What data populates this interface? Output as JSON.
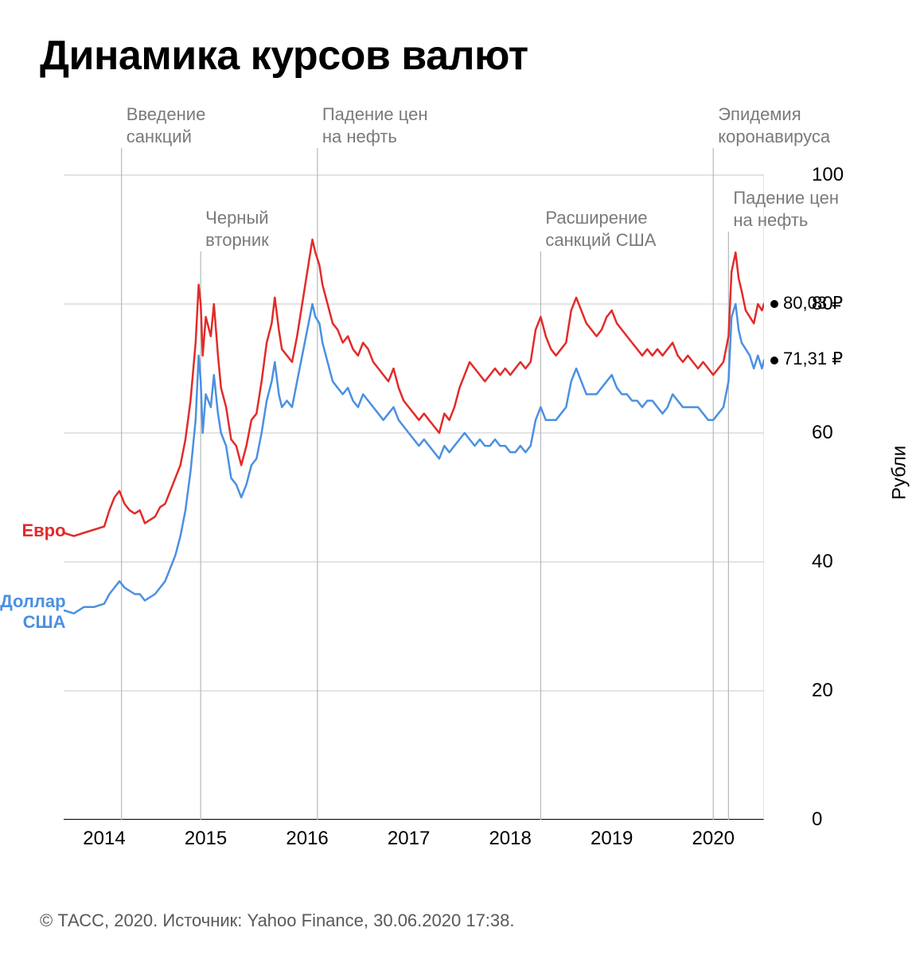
{
  "title": "Динамика курсов валют",
  "footer": "© ТАСС, 2020. Источник: Yahoo Finance, 30.06.2020 17:38.",
  "chart": {
    "type": "line",
    "background_color": "#ffffff",
    "grid_color": "#c9c9c9",
    "axis_color": "#000000",
    "event_line_color": "#b8b8b8",
    "x_domain": [
      2013.6,
      2020.5
    ],
    "y_domain": [
      0,
      100
    ],
    "y_title": "Рубли",
    "y_ticks": [
      0,
      20,
      40,
      60,
      80,
      100
    ],
    "x_ticks": [
      2014,
      2015,
      2016,
      2017,
      2018,
      2019,
      2020
    ],
    "x_tick_labels": [
      "2014",
      "2015",
      "2016",
      "2017",
      "2018",
      "2019",
      "2020"
    ],
    "title_fontsize": 52,
    "tick_fontsize": 24,
    "line_width": 2.5,
    "events": [
      {
        "x": 2014.17,
        "y_row": 0,
        "label": "Введение\nсанкций"
      },
      {
        "x": 2014.95,
        "y_row": 1,
        "label": "Черный\nвторник"
      },
      {
        "x": 2016.1,
        "y_row": 0,
        "label": "Падение цен\nна нефть"
      },
      {
        "x": 2018.3,
        "y_row": 1,
        "label": "Расширение\nсанкций США"
      },
      {
        "x": 2020.0,
        "y_row": 0,
        "label": "Эпидемия\nкоронавируса"
      },
      {
        "x": 2020.15,
        "y_row": 2,
        "label": "Падение цен\nна нефть"
      }
    ],
    "series": [
      {
        "name": "Евро",
        "color": "#e22b29",
        "label_pos_x": 2013.62,
        "label_pos_y": 45,
        "end_value": 80.03,
        "end_label": "80,03 ₽",
        "data": [
          [
            2013.6,
            44.5
          ],
          [
            2013.7,
            44.0
          ],
          [
            2013.8,
            44.5
          ],
          [
            2013.9,
            45.0
          ],
          [
            2014.0,
            45.5
          ],
          [
            2014.05,
            48.0
          ],
          [
            2014.1,
            50.0
          ],
          [
            2014.15,
            51.0
          ],
          [
            2014.2,
            49.0
          ],
          [
            2014.25,
            48.0
          ],
          [
            2014.3,
            47.5
          ],
          [
            2014.35,
            48.0
          ],
          [
            2014.4,
            46.0
          ],
          [
            2014.45,
            46.5
          ],
          [
            2014.5,
            47.0
          ],
          [
            2014.55,
            48.5
          ],
          [
            2014.6,
            49.0
          ],
          [
            2014.65,
            51.0
          ],
          [
            2014.7,
            53.0
          ],
          [
            2014.75,
            55.0
          ],
          [
            2014.8,
            59.0
          ],
          [
            2014.85,
            65.0
          ],
          [
            2014.9,
            74.0
          ],
          [
            2014.93,
            83.0
          ],
          [
            2014.95,
            80.0
          ],
          [
            2014.97,
            72.0
          ],
          [
            2015.0,
            78.0
          ],
          [
            2015.05,
            75.0
          ],
          [
            2015.08,
            80.0
          ],
          [
            2015.12,
            72.0
          ],
          [
            2015.15,
            67.0
          ],
          [
            2015.2,
            64.0
          ],
          [
            2015.25,
            59.0
          ],
          [
            2015.3,
            58.0
          ],
          [
            2015.35,
            55.0
          ],
          [
            2015.4,
            58.0
          ],
          [
            2015.45,
            62.0
          ],
          [
            2015.5,
            63.0
          ],
          [
            2015.55,
            68.0
          ],
          [
            2015.6,
            74.0
          ],
          [
            2015.65,
            77.0
          ],
          [
            2015.68,
            81.0
          ],
          [
            2015.72,
            76.0
          ],
          [
            2015.75,
            73.0
          ],
          [
            2015.8,
            72.0
          ],
          [
            2015.85,
            71.0
          ],
          [
            2015.9,
            75.0
          ],
          [
            2015.95,
            80.0
          ],
          [
            2016.0,
            85.0
          ],
          [
            2016.05,
            90.0
          ],
          [
            2016.08,
            88.0
          ],
          [
            2016.12,
            86.0
          ],
          [
            2016.15,
            83.0
          ],
          [
            2016.2,
            80.0
          ],
          [
            2016.25,
            77.0
          ],
          [
            2016.3,
            76.0
          ],
          [
            2016.35,
            74.0
          ],
          [
            2016.4,
            75.0
          ],
          [
            2016.45,
            73.0
          ],
          [
            2016.5,
            72.0
          ],
          [
            2016.55,
            74.0
          ],
          [
            2016.6,
            73.0
          ],
          [
            2016.65,
            71.0
          ],
          [
            2016.7,
            70.0
          ],
          [
            2016.75,
            69.0
          ],
          [
            2016.8,
            68.0
          ],
          [
            2016.85,
            70.0
          ],
          [
            2016.9,
            67.0
          ],
          [
            2016.95,
            65.0
          ],
          [
            2017.0,
            64.0
          ],
          [
            2017.05,
            63.0
          ],
          [
            2017.1,
            62.0
          ],
          [
            2017.15,
            63.0
          ],
          [
            2017.2,
            62.0
          ],
          [
            2017.25,
            61.0
          ],
          [
            2017.3,
            60.0
          ],
          [
            2017.35,
            63.0
          ],
          [
            2017.4,
            62.0
          ],
          [
            2017.45,
            64.0
          ],
          [
            2017.5,
            67.0
          ],
          [
            2017.55,
            69.0
          ],
          [
            2017.6,
            71.0
          ],
          [
            2017.65,
            70.0
          ],
          [
            2017.7,
            69.0
          ],
          [
            2017.75,
            68.0
          ],
          [
            2017.8,
            69.0
          ],
          [
            2017.85,
            70.0
          ],
          [
            2017.9,
            69.0
          ],
          [
            2017.95,
            70.0
          ],
          [
            2018.0,
            69.0
          ],
          [
            2018.05,
            70.0
          ],
          [
            2018.1,
            71.0
          ],
          [
            2018.15,
            70.0
          ],
          [
            2018.2,
            71.0
          ],
          [
            2018.25,
            76.0
          ],
          [
            2018.3,
            78.0
          ],
          [
            2018.35,
            75.0
          ],
          [
            2018.4,
            73.0
          ],
          [
            2018.45,
            72.0
          ],
          [
            2018.5,
            73.0
          ],
          [
            2018.55,
            74.0
          ],
          [
            2018.6,
            79.0
          ],
          [
            2018.65,
            81.0
          ],
          [
            2018.7,
            79.0
          ],
          [
            2018.75,
            77.0
          ],
          [
            2018.8,
            76.0
          ],
          [
            2018.85,
            75.0
          ],
          [
            2018.9,
            76.0
          ],
          [
            2018.95,
            78.0
          ],
          [
            2019.0,
            79.0
          ],
          [
            2019.05,
            77.0
          ],
          [
            2019.1,
            76.0
          ],
          [
            2019.15,
            75.0
          ],
          [
            2019.2,
            74.0
          ],
          [
            2019.25,
            73.0
          ],
          [
            2019.3,
            72.0
          ],
          [
            2019.35,
            73.0
          ],
          [
            2019.4,
            72.0
          ],
          [
            2019.45,
            73.0
          ],
          [
            2019.5,
            72.0
          ],
          [
            2019.55,
            73.0
          ],
          [
            2019.6,
            74.0
          ],
          [
            2019.65,
            72.0
          ],
          [
            2019.7,
            71.0
          ],
          [
            2019.75,
            72.0
          ],
          [
            2019.8,
            71.0
          ],
          [
            2019.85,
            70.0
          ],
          [
            2019.9,
            71.0
          ],
          [
            2019.95,
            70.0
          ],
          [
            2020.0,
            69.0
          ],
          [
            2020.05,
            70.0
          ],
          [
            2020.1,
            71.0
          ],
          [
            2020.15,
            75.0
          ],
          [
            2020.18,
            85.0
          ],
          [
            2020.22,
            88.0
          ],
          [
            2020.25,
            84.0
          ],
          [
            2020.28,
            82.0
          ],
          [
            2020.32,
            79.0
          ],
          [
            2020.36,
            78.0
          ],
          [
            2020.4,
            77.0
          ],
          [
            2020.44,
            80.0
          ],
          [
            2020.48,
            79.0
          ],
          [
            2020.5,
            80.03
          ]
        ]
      },
      {
        "name": "Доллар\nСША",
        "color": "#4b90e2",
        "label_pos_x": 2013.62,
        "label_pos_y": 34,
        "end_value": 71.31,
        "end_label": "71,31 ₽",
        "data": [
          [
            2013.6,
            32.5
          ],
          [
            2013.7,
            32.0
          ],
          [
            2013.8,
            33.0
          ],
          [
            2013.9,
            33.0
          ],
          [
            2014.0,
            33.5
          ],
          [
            2014.05,
            35.0
          ],
          [
            2014.1,
            36.0
          ],
          [
            2014.15,
            37.0
          ],
          [
            2014.2,
            36.0
          ],
          [
            2014.25,
            35.5
          ],
          [
            2014.3,
            35.0
          ],
          [
            2014.35,
            35.0
          ],
          [
            2014.4,
            34.0
          ],
          [
            2014.45,
            34.5
          ],
          [
            2014.5,
            35.0
          ],
          [
            2014.55,
            36.0
          ],
          [
            2014.6,
            37.0
          ],
          [
            2014.65,
            39.0
          ],
          [
            2014.7,
            41.0
          ],
          [
            2014.75,
            44.0
          ],
          [
            2014.8,
            48.0
          ],
          [
            2014.85,
            54.0
          ],
          [
            2014.9,
            62.0
          ],
          [
            2014.93,
            72.0
          ],
          [
            2014.95,
            68.0
          ],
          [
            2014.97,
            60.0
          ],
          [
            2015.0,
            66.0
          ],
          [
            2015.05,
            64.0
          ],
          [
            2015.08,
            69.0
          ],
          [
            2015.12,
            63.0
          ],
          [
            2015.15,
            60.0
          ],
          [
            2015.2,
            58.0
          ],
          [
            2015.25,
            53.0
          ],
          [
            2015.3,
            52.0
          ],
          [
            2015.35,
            50.0
          ],
          [
            2015.4,
            52.0
          ],
          [
            2015.45,
            55.0
          ],
          [
            2015.5,
            56.0
          ],
          [
            2015.55,
            60.0
          ],
          [
            2015.6,
            65.0
          ],
          [
            2015.65,
            68.0
          ],
          [
            2015.68,
            71.0
          ],
          [
            2015.72,
            66.0
          ],
          [
            2015.75,
            64.0
          ],
          [
            2015.8,
            65.0
          ],
          [
            2015.85,
            64.0
          ],
          [
            2015.9,
            68.0
          ],
          [
            2015.95,
            72.0
          ],
          [
            2016.0,
            76.0
          ],
          [
            2016.05,
            80.0
          ],
          [
            2016.08,
            78.0
          ],
          [
            2016.12,
            77.0
          ],
          [
            2016.15,
            74.0
          ],
          [
            2016.2,
            71.0
          ],
          [
            2016.25,
            68.0
          ],
          [
            2016.3,
            67.0
          ],
          [
            2016.35,
            66.0
          ],
          [
            2016.4,
            67.0
          ],
          [
            2016.45,
            65.0
          ],
          [
            2016.5,
            64.0
          ],
          [
            2016.55,
            66.0
          ],
          [
            2016.6,
            65.0
          ],
          [
            2016.65,
            64.0
          ],
          [
            2016.7,
            63.0
          ],
          [
            2016.75,
            62.0
          ],
          [
            2016.8,
            63.0
          ],
          [
            2016.85,
            64.0
          ],
          [
            2016.9,
            62.0
          ],
          [
            2016.95,
            61.0
          ],
          [
            2017.0,
            60.0
          ],
          [
            2017.05,
            59.0
          ],
          [
            2017.1,
            58.0
          ],
          [
            2017.15,
            59.0
          ],
          [
            2017.2,
            58.0
          ],
          [
            2017.25,
            57.0
          ],
          [
            2017.3,
            56.0
          ],
          [
            2017.35,
            58.0
          ],
          [
            2017.4,
            57.0
          ],
          [
            2017.45,
            58.0
          ],
          [
            2017.5,
            59.0
          ],
          [
            2017.55,
            60.0
          ],
          [
            2017.6,
            59.0
          ],
          [
            2017.65,
            58.0
          ],
          [
            2017.7,
            59.0
          ],
          [
            2017.75,
            58.0
          ],
          [
            2017.8,
            58.0
          ],
          [
            2017.85,
            59.0
          ],
          [
            2017.9,
            58.0
          ],
          [
            2017.95,
            58.0
          ],
          [
            2018.0,
            57.0
          ],
          [
            2018.05,
            57.0
          ],
          [
            2018.1,
            58.0
          ],
          [
            2018.15,
            57.0
          ],
          [
            2018.2,
            58.0
          ],
          [
            2018.25,
            62.0
          ],
          [
            2018.3,
            64.0
          ],
          [
            2018.35,
            62.0
          ],
          [
            2018.4,
            62.0
          ],
          [
            2018.45,
            62.0
          ],
          [
            2018.5,
            63.0
          ],
          [
            2018.55,
            64.0
          ],
          [
            2018.6,
            68.0
          ],
          [
            2018.65,
            70.0
          ],
          [
            2018.7,
            68.0
          ],
          [
            2018.75,
            66.0
          ],
          [
            2018.8,
            66.0
          ],
          [
            2018.85,
            66.0
          ],
          [
            2018.9,
            67.0
          ],
          [
            2018.95,
            68.0
          ],
          [
            2019.0,
            69.0
          ],
          [
            2019.05,
            67.0
          ],
          [
            2019.1,
            66.0
          ],
          [
            2019.15,
            66.0
          ],
          [
            2019.2,
            65.0
          ],
          [
            2019.25,
            65.0
          ],
          [
            2019.3,
            64.0
          ],
          [
            2019.35,
            65.0
          ],
          [
            2019.4,
            65.0
          ],
          [
            2019.45,
            64.0
          ],
          [
            2019.5,
            63.0
          ],
          [
            2019.55,
            64.0
          ],
          [
            2019.6,
            66.0
          ],
          [
            2019.65,
            65.0
          ],
          [
            2019.7,
            64.0
          ],
          [
            2019.75,
            64.0
          ],
          [
            2019.8,
            64.0
          ],
          [
            2019.85,
            64.0
          ],
          [
            2019.9,
            63.0
          ],
          [
            2019.95,
            62.0
          ],
          [
            2020.0,
            62.0
          ],
          [
            2020.05,
            63.0
          ],
          [
            2020.1,
            64.0
          ],
          [
            2020.15,
            68.0
          ],
          [
            2020.18,
            78.0
          ],
          [
            2020.22,
            80.0
          ],
          [
            2020.25,
            76.0
          ],
          [
            2020.28,
            74.0
          ],
          [
            2020.32,
            73.0
          ],
          [
            2020.36,
            72.0
          ],
          [
            2020.4,
            70.0
          ],
          [
            2020.44,
            72.0
          ],
          [
            2020.48,
            70.0
          ],
          [
            2020.5,
            71.31
          ]
        ]
      }
    ]
  }
}
